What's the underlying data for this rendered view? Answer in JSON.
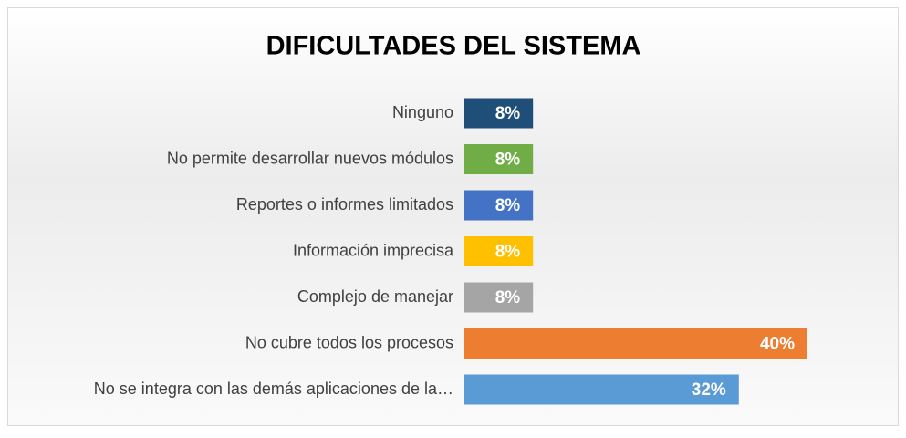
{
  "chart_data": {
    "type": "bar",
    "orientation": "horizontal",
    "title": "DIFICULTADES DEL SISTEMA",
    "categories": [
      "Ninguno",
      "No permite desarrollar nuevos módulos",
      "Reportes o informes limitados",
      "Información imprecisa",
      "Complejo de manejar",
      "No cubre todos los procesos",
      "No se integra con las demás aplicaciones de la…"
    ],
    "values": [
      8,
      8,
      8,
      8,
      8,
      40,
      32
    ],
    "value_labels": [
      "8%",
      "8%",
      "8%",
      "8%",
      "8%",
      "40%",
      "32%"
    ],
    "colors": [
      "#1f4e79",
      "#70ad47",
      "#4472c4",
      "#ffc000",
      "#a5a5a5",
      "#ed7d31",
      "#5b9bd5"
    ]
  }
}
